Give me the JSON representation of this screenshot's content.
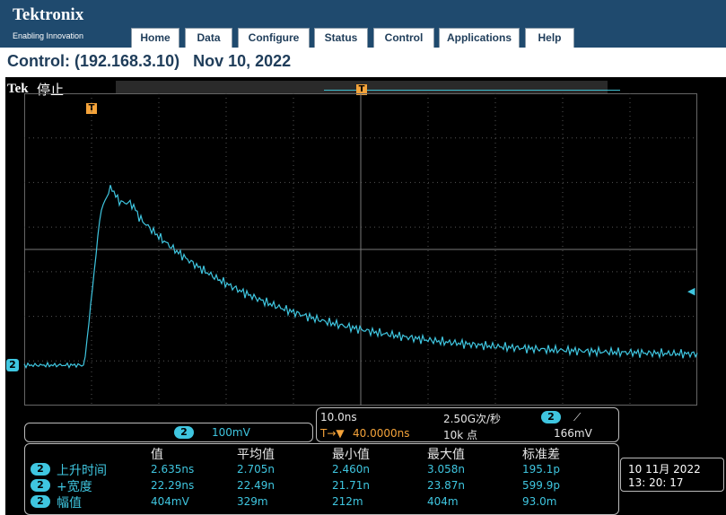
{
  "header": {
    "logo": "Tektronix",
    "tagline": "Enabling Innovation",
    "nav": [
      "Home",
      "Data",
      "Configure",
      "Status",
      "Control",
      "Applications",
      "Help"
    ]
  },
  "page": {
    "title": "Control: (192.168.3.10)   Nov 10, 2022"
  },
  "scope": {
    "brand": "Tek",
    "state": "停止",
    "trigger_label": "T",
    "channel_label": "2",
    "channel": {
      "scale": "100mV"
    },
    "horizontal": {
      "timebase": "10.0ns",
      "sample_rate": "2.50G次/秒",
      "trigger_prefix": "T→▼",
      "trigger_pos": "40.0000ns",
      "record_length": "10k 点",
      "trigger_channel": "2",
      "trigger_slope": "⟋",
      "trigger_level": "166mV"
    },
    "measurements": {
      "headers": [
        "值",
        "平均值",
        "最小值",
        "最大值",
        "标准差"
      ],
      "rows": [
        {
          "ch": "2",
          "name": "上升时间",
          "value": "2.635ns",
          "mean": "2.705n",
          "min": "2.460n",
          "max": "3.058n",
          "std": "195.1p"
        },
        {
          "ch": "2",
          "name": "+宽度",
          "value": "22.29ns",
          "mean": "22.49n",
          "min": "21.71n",
          "max": "23.87n",
          "std": "599.9p"
        },
        {
          "ch": "2",
          "name": "幅值",
          "value": "404mV",
          "mean": "329m",
          "min": "212m",
          "max": "404m",
          "std": "93.0m"
        }
      ]
    },
    "datetime": {
      "date": "10 11月  2022",
      "time": "13: 20: 17"
    },
    "colors": {
      "trace": "#3fc6e0",
      "trigger_marker": "#f4a33a",
      "background": "#000000"
    }
  }
}
